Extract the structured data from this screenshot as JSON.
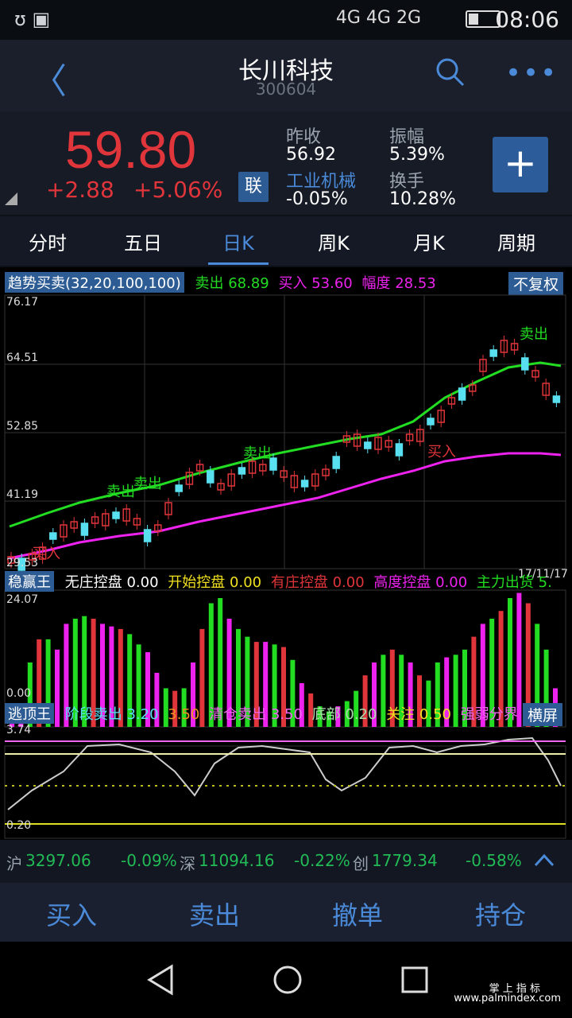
{
  "status": {
    "network": "4G 4G 2G",
    "time": "08:06"
  },
  "header": {
    "title": "长川科技",
    "code": "300604"
  },
  "quote": {
    "price": "59.80",
    "change": "+2.88",
    "change_pct": "+5.06%",
    "lian": "联",
    "prev_close_label": "昨收",
    "prev_close": "56.92",
    "industry_label": "工业机械",
    "industry_chg": "-0.05%",
    "amp_label": "振幅",
    "amp": "5.39%",
    "turnover_label": "换手",
    "turnover": "10.28%"
  },
  "tabs": [
    {
      "label": "分时"
    },
    {
      "label": "五日"
    },
    {
      "label": "日K"
    },
    {
      "label": "周K"
    },
    {
      "label": "月K"
    },
    {
      "label": "周期"
    }
  ],
  "indicator1": {
    "name": "趋势买卖(32,20,100,100)",
    "sell_label": "卖出",
    "sell": "68.89",
    "buy_label": "买入",
    "buy": "53.60",
    "range_label": "幅度",
    "range": "28.53",
    "button": "不复权"
  },
  "axis1": {
    "y": [
      "76.17",
      "64.51",
      "52.85",
      "41.19",
      "29.53"
    ],
    "date": "17/11/17"
  },
  "annotations": {
    "sell": "卖出",
    "buy": "买入"
  },
  "indicator2": {
    "name": "稳赢王",
    "a": "无庄控盘",
    "av": "0.00",
    "b": "开始控盘",
    "bv": "0.00",
    "c": "有庄控盘",
    "cv": "0.00",
    "d": "高度控盘",
    "dv": "0.00",
    "e": "主力出货",
    "ev": "5.",
    "ymax": "24.07",
    "ymin": "0.00"
  },
  "indicator3": {
    "name": "逃顶王",
    "a": "阶段卖出",
    "av": "3.20",
    "b": "3.50",
    "c": "清仓卖出",
    "cv": "3.50",
    "d": "底部",
    "dv": "0.20",
    "e": "关注",
    "ev": "0.50",
    "f": "强弱分界",
    "button": "横屏",
    "ymax": "3.74",
    "ymin": "0.20"
  },
  "market": {
    "sh_label": "沪",
    "sh": "3297.06",
    "sh_chg": "-0.09%",
    "sz_label": "深",
    "sz": "11094.16",
    "sz_chg": "-0.22%",
    "cy_label": "创",
    "cy": "1779.34",
    "cy_chg": "-0.58%"
  },
  "actions": {
    "buy": "买入",
    "sell": "卖出",
    "cancel": "撤单",
    "hold": "持仓"
  },
  "watermark": {
    "line1": "掌 上 指 标",
    "line2": "www.palmindex.com"
  },
  "colors": {
    "up": "#e0353a",
    "down": "#59e0f0",
    "accent": "#4a8ad8",
    "green": "#22dd22",
    "magenta": "#ee22ee"
  }
}
